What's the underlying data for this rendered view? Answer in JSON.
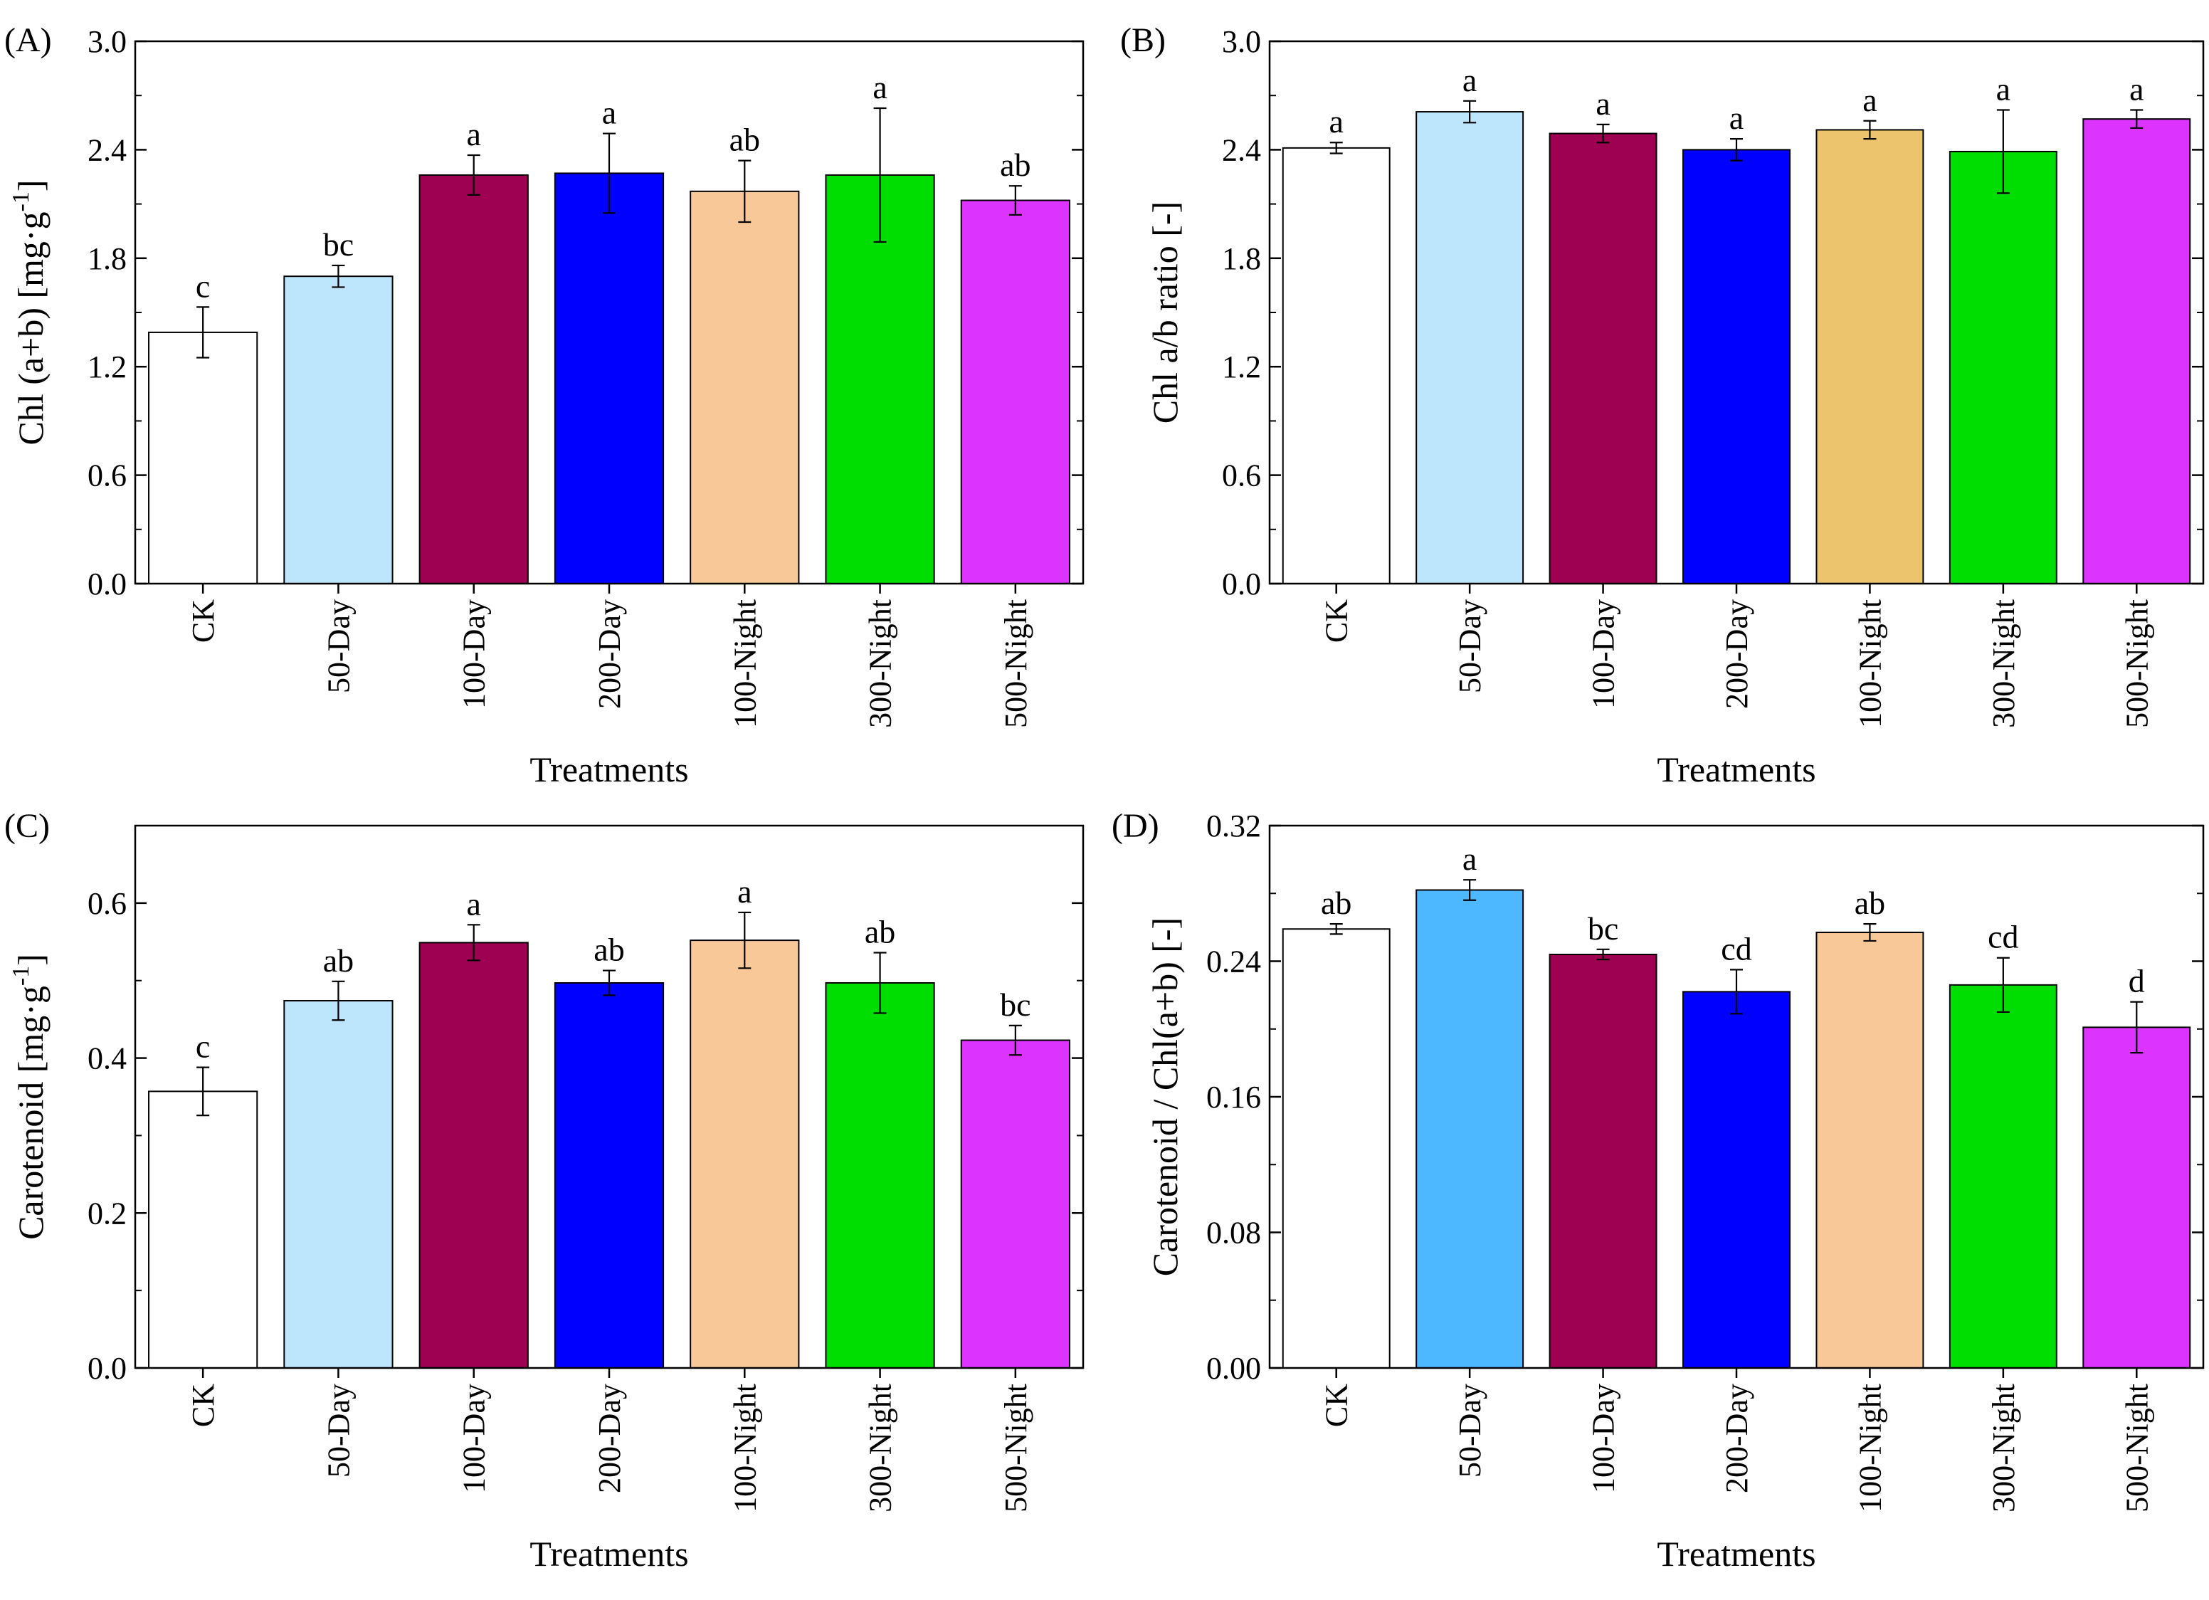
{
  "chart_data": [
    {
      "id": "A",
      "type": "bar",
      "panel_label": "(A)",
      "xlabel": "Treatments",
      "ylabel": "Chl (a+b) [mg·g",
      "ylabel_sup": "-1",
      "ylabel_suffix": "]",
      "ylim": [
        0,
        3.0
      ],
      "yticks": [
        "0.0",
        "0.6",
        "1.2",
        "1.8",
        "2.4",
        "3.0"
      ],
      "categories": [
        "CK",
        "50-Day",
        "100-Day",
        "200-Day",
        "100-Night",
        "300-Night",
        "500-Night"
      ],
      "values": [
        1.39,
        1.7,
        2.26,
        2.27,
        2.17,
        2.26,
        2.12
      ],
      "errors": [
        0.14,
        0.06,
        0.11,
        0.22,
        0.17,
        0.37,
        0.08
      ],
      "letters": [
        "c",
        "bc",
        "a",
        "a",
        "ab",
        "a",
        "ab"
      ],
      "colors": [
        "#ffffff",
        "#bde5fb",
        "#9e0052",
        "#0000ff",
        "#f9c899",
        "#00dd00",
        "#dd33ff"
      ]
    },
    {
      "id": "B",
      "type": "bar",
      "panel_label": "(B)",
      "xlabel": "Treatments",
      "ylabel": "Chl a/b ratio [-]",
      "ylabel_sup": "",
      "ylabel_suffix": "",
      "ylim": [
        0,
        3.0
      ],
      "yticks": [
        "0.0",
        "0.6",
        "1.2",
        "1.8",
        "2.4",
        "3.0"
      ],
      "categories": [
        "CK",
        "50-Day",
        "100-Day",
        "200-Day",
        "100-Night",
        "300-Night",
        "500-Night"
      ],
      "values": [
        2.41,
        2.61,
        2.49,
        2.4,
        2.51,
        2.39,
        2.57
      ],
      "errors": [
        0.03,
        0.06,
        0.05,
        0.06,
        0.05,
        0.23,
        0.05
      ],
      "letters": [
        "a",
        "a",
        "a",
        "a",
        "a",
        "a",
        "a"
      ],
      "colors": [
        "#ffffff",
        "#bde5fb",
        "#9e0052",
        "#0000ff",
        "#ecc46d",
        "#00dd00",
        "#dd33ff"
      ]
    },
    {
      "id": "C",
      "type": "bar",
      "panel_label": "(C)",
      "xlabel": "Treatments",
      "ylabel": "Carotenoid [mg·g",
      "ylabel_sup": "-1",
      "ylabel_suffix": "]",
      "ylim": [
        0,
        0.7
      ],
      "yticks": [
        "0.0",
        "0.2",
        "0.4",
        "0.6"
      ],
      "ytick_values": [
        0.0,
        0.2,
        0.4,
        0.6
      ],
      "categories": [
        "CK",
        "50-Day",
        "100-Day",
        "200-Day",
        "100-Night",
        "300-Night",
        "500-Night"
      ],
      "values": [
        0.357,
        0.474,
        0.549,
        0.497,
        0.552,
        0.497,
        0.423
      ],
      "errors": [
        0.031,
        0.025,
        0.023,
        0.016,
        0.036,
        0.039,
        0.019
      ],
      "letters": [
        "c",
        "ab",
        "a",
        "ab",
        "a",
        "ab",
        "bc"
      ],
      "colors": [
        "#ffffff",
        "#bde5fb",
        "#9e0052",
        "#0000ff",
        "#f9c899",
        "#00dd00",
        "#dd33ff"
      ]
    },
    {
      "id": "D",
      "type": "bar",
      "panel_label": "(D)",
      "xlabel": "Treatments",
      "ylabel": "Carotenoid / Chl(a+b) [-]",
      "ylabel_sup": "",
      "ylabel_suffix": "",
      "ylim": [
        0,
        0.32
      ],
      "yticks": [
        "0.00",
        "0.08",
        "0.16",
        "0.24",
        "0.32"
      ],
      "categories": [
        "CK",
        "50-Day",
        "100-Day",
        "200-Day",
        "100-Night",
        "300-Night",
        "500-Night"
      ],
      "values": [
        0.259,
        0.282,
        0.244,
        0.222,
        0.257,
        0.226,
        0.201
      ],
      "errors": [
        0.003,
        0.006,
        0.003,
        0.013,
        0.005,
        0.016,
        0.015
      ],
      "letters": [
        "ab",
        "a",
        "bc",
        "cd",
        "ab",
        "cd",
        "d"
      ],
      "colors": [
        "#ffffff",
        "#4db8ff",
        "#9e0052",
        "#0000ff",
        "#f9c899",
        "#00dd00",
        "#dd33ff"
      ]
    }
  ]
}
